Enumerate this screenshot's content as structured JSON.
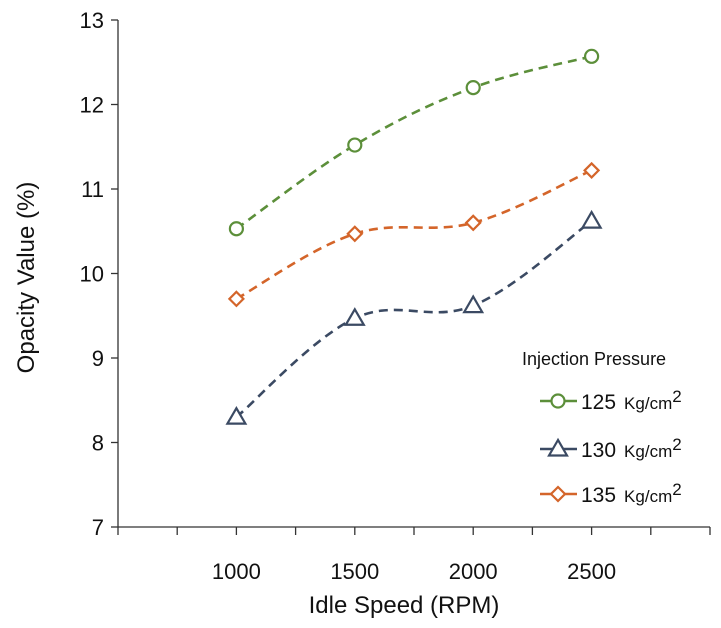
{
  "chart_data": {
    "type": "line",
    "xlabel": "Idle Speed (RPM)",
    "ylabel": "Opacity Value (%)",
    "x": [
      1000,
      1500,
      2000,
      2500
    ],
    "xlim": [
      500,
      3000
    ],
    "ylim": [
      7,
      13
    ],
    "x_ticks": [
      "1000",
      "1500",
      "2000",
      "2500"
    ],
    "y_ticks": [
      "7",
      "8",
      "9",
      "10",
      "11",
      "12",
      "13"
    ],
    "grid": false,
    "line_style": "dashed",
    "legend": {
      "title": "Injection Pressure",
      "placement": "bottom-right"
    },
    "series": [
      {
        "name": "125 Kg/cm2",
        "label_main": "125",
        "label_unit": "Kg/cm",
        "label_sup": "2",
        "values": [
          10.53,
          11.52,
          12.2,
          12.57
        ],
        "color": "#5c8f3a",
        "marker": "circle"
      },
      {
        "name": "130 Kg/cm2",
        "label_main": "130",
        "label_unit": "Kg/cm",
        "label_sup": "2",
        "values": [
          8.3,
          9.47,
          9.62,
          10.62
        ],
        "color": "#3b4a63",
        "marker": "triangle"
      },
      {
        "name": "135 Kg/cm2",
        "label_main": "135",
        "label_unit": "Kg/cm",
        "label_sup": "2",
        "values": [
          9.7,
          10.47,
          10.6,
          11.22
        ],
        "color": "#d4652a",
        "marker": "diamond"
      }
    ]
  }
}
